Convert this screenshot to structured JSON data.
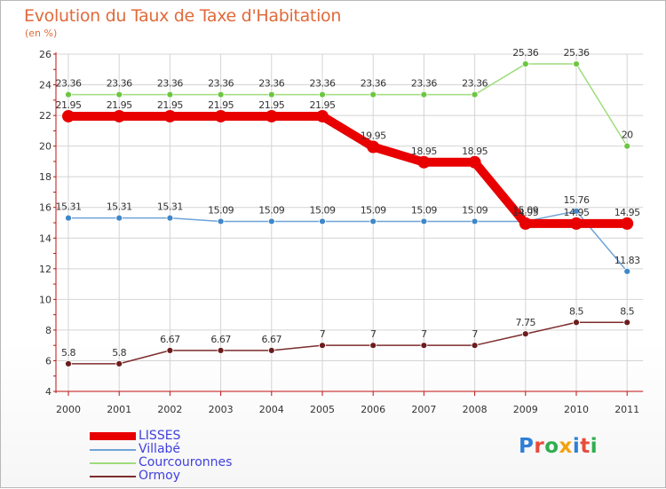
{
  "title": "Evolution du Taux de Taxe d'Habitation",
  "subtitle": "(en %)",
  "logo": {
    "text": "Proxiti",
    "letters": [
      {
        "ch": "P",
        "color": "#2f7fd6"
      },
      {
        "ch": "r",
        "color": "#e84b3c"
      },
      {
        "ch": "o",
        "color": "#2fae4e"
      },
      {
        "ch": "x",
        "color": "#f2a20c"
      },
      {
        "ch": "i",
        "color": "#2f7fd6"
      },
      {
        "ch": "t",
        "color": "#e84b3c"
      },
      {
        "ch": "i",
        "color": "#2fae4e"
      }
    ]
  },
  "colors": {
    "axis": "#c01010",
    "grid": "#d4d4d4",
    "tick_text": "#333333",
    "label_text": "#333333"
  },
  "chart_data": {
    "type": "line",
    "title": "Evolution du Taux de Taxe d'Habitation",
    "subtitle": "(en %)",
    "xlabel": "",
    "ylabel": "",
    "x": [
      "2000",
      "2001",
      "2002",
      "2003",
      "2004",
      "2005",
      "2006",
      "2007",
      "2008",
      "2009",
      "2010",
      "2011"
    ],
    "ylim": [
      4,
      26
    ],
    "yticks": [
      "4",
      "6",
      "8",
      "10",
      "12",
      "14",
      "16",
      "18",
      "20",
      "22",
      "24",
      "26"
    ],
    "grid": true,
    "legend_position": "bottom-left",
    "series": [
      {
        "name": "LISSES",
        "color": "#e80000",
        "stroke": 10,
        "marker": 7,
        "values": [
          21.95,
          21.95,
          21.95,
          21.95,
          21.95,
          21.95,
          19.95,
          18.95,
          18.95,
          14.95,
          14.95,
          14.95
        ],
        "labels": [
          "21.95",
          "21.95",
          "21.95",
          "21.95",
          "21.95",
          "21.95",
          "19.95",
          "18.95",
          "18.95",
          "14.95",
          "14.95",
          "14.95"
        ]
      },
      {
        "name": "Villabé",
        "color": "#6fa3d8",
        "marker_color": "#3f87c9",
        "stroke": 1.5,
        "marker": 3.5,
        "values": [
          15.31,
          15.31,
          15.31,
          15.09,
          15.09,
          15.09,
          15.09,
          15.09,
          15.09,
          15.09,
          15.76,
          11.83
        ],
        "labels": [
          "15.31",
          "15.31",
          "15.31",
          "15.09",
          "15.09",
          "15.09",
          "15.09",
          "15.09",
          "15.09",
          "15.09",
          "15.76",
          "11.83"
        ]
      },
      {
        "name": "Courcouronnes",
        "color": "#9fdc7c",
        "marker_color": "#6cc641",
        "stroke": 1.5,
        "marker": 3.5,
        "values": [
          23.36,
          23.36,
          23.36,
          23.36,
          23.36,
          23.36,
          23.36,
          23.36,
          23.36,
          25.36,
          25.36,
          20
        ],
        "labels": [
          "23.36",
          "23.36",
          "23.36",
          "23.36",
          "23.36",
          "23.36",
          "23.36",
          "23.36",
          "23.36",
          "25.36",
          "25.36",
          "20"
        ]
      },
      {
        "name": "Ormoy",
        "color": "#7d2c2c",
        "marker_color": "#6b1d1d",
        "stroke": 1.5,
        "marker": 3.5,
        "values": [
          5.8,
          5.8,
          6.67,
          6.67,
          6.67,
          7,
          7,
          7,
          7,
          7.75,
          8.5,
          8.5
        ],
        "labels": [
          "5.8",
          "5.8",
          "6.67",
          "6.67",
          "6.67",
          "7",
          "7",
          "7",
          "7",
          "7.75",
          "8.5",
          "8.5"
        ]
      }
    ]
  }
}
